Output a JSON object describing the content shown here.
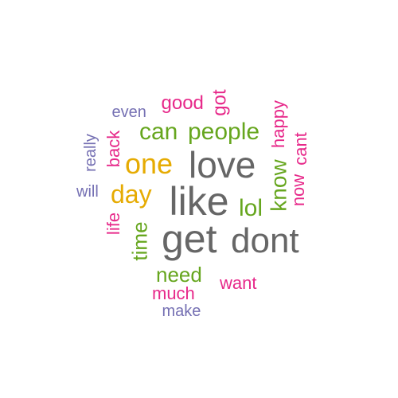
{
  "words": [
    {
      "text": "get",
      "color": "#666666",
      "rotated": false
    },
    {
      "text": "like",
      "color": "#666666",
      "rotated": false
    },
    {
      "text": "love",
      "color": "#666666",
      "rotated": false
    },
    {
      "text": "dont",
      "color": "#666666",
      "rotated": false
    },
    {
      "text": "one",
      "color": "#e6ab02",
      "rotated": false
    },
    {
      "text": "day",
      "color": "#e6ab02",
      "rotated": false
    },
    {
      "text": "can",
      "color": "#66a61e",
      "rotated": false
    },
    {
      "text": "people",
      "color": "#66a61e",
      "rotated": false
    },
    {
      "text": "lol",
      "color": "#66a61e",
      "rotated": false
    },
    {
      "text": "know",
      "color": "#66a61e",
      "rotated": true
    },
    {
      "text": "time",
      "color": "#66a61e",
      "rotated": true
    },
    {
      "text": "need",
      "color": "#66a61e",
      "rotated": false
    },
    {
      "text": "good",
      "color": "#e7298a",
      "rotated": false
    },
    {
      "text": "got",
      "color": "#e7298a",
      "rotated": true
    },
    {
      "text": "happy",
      "color": "#e7298a",
      "rotated": true
    },
    {
      "text": "now",
      "color": "#e7298a",
      "rotated": true
    },
    {
      "text": "cant",
      "color": "#e7298a",
      "rotated": true
    },
    {
      "text": "back",
      "color": "#e7298a",
      "rotated": true
    },
    {
      "text": "life",
      "color": "#e7298a",
      "rotated": true
    },
    {
      "text": "want",
      "color": "#e7298a",
      "rotated": false
    },
    {
      "text": "much",
      "color": "#e7298a",
      "rotated": false
    },
    {
      "text": "even",
      "color": "#7570b3",
      "rotated": false
    },
    {
      "text": "really",
      "color": "#7570b3",
      "rotated": true
    },
    {
      "text": "will",
      "color": "#7570b3",
      "rotated": false
    },
    {
      "text": "make",
      "color": "#7570b3",
      "rotated": false
    }
  ]
}
